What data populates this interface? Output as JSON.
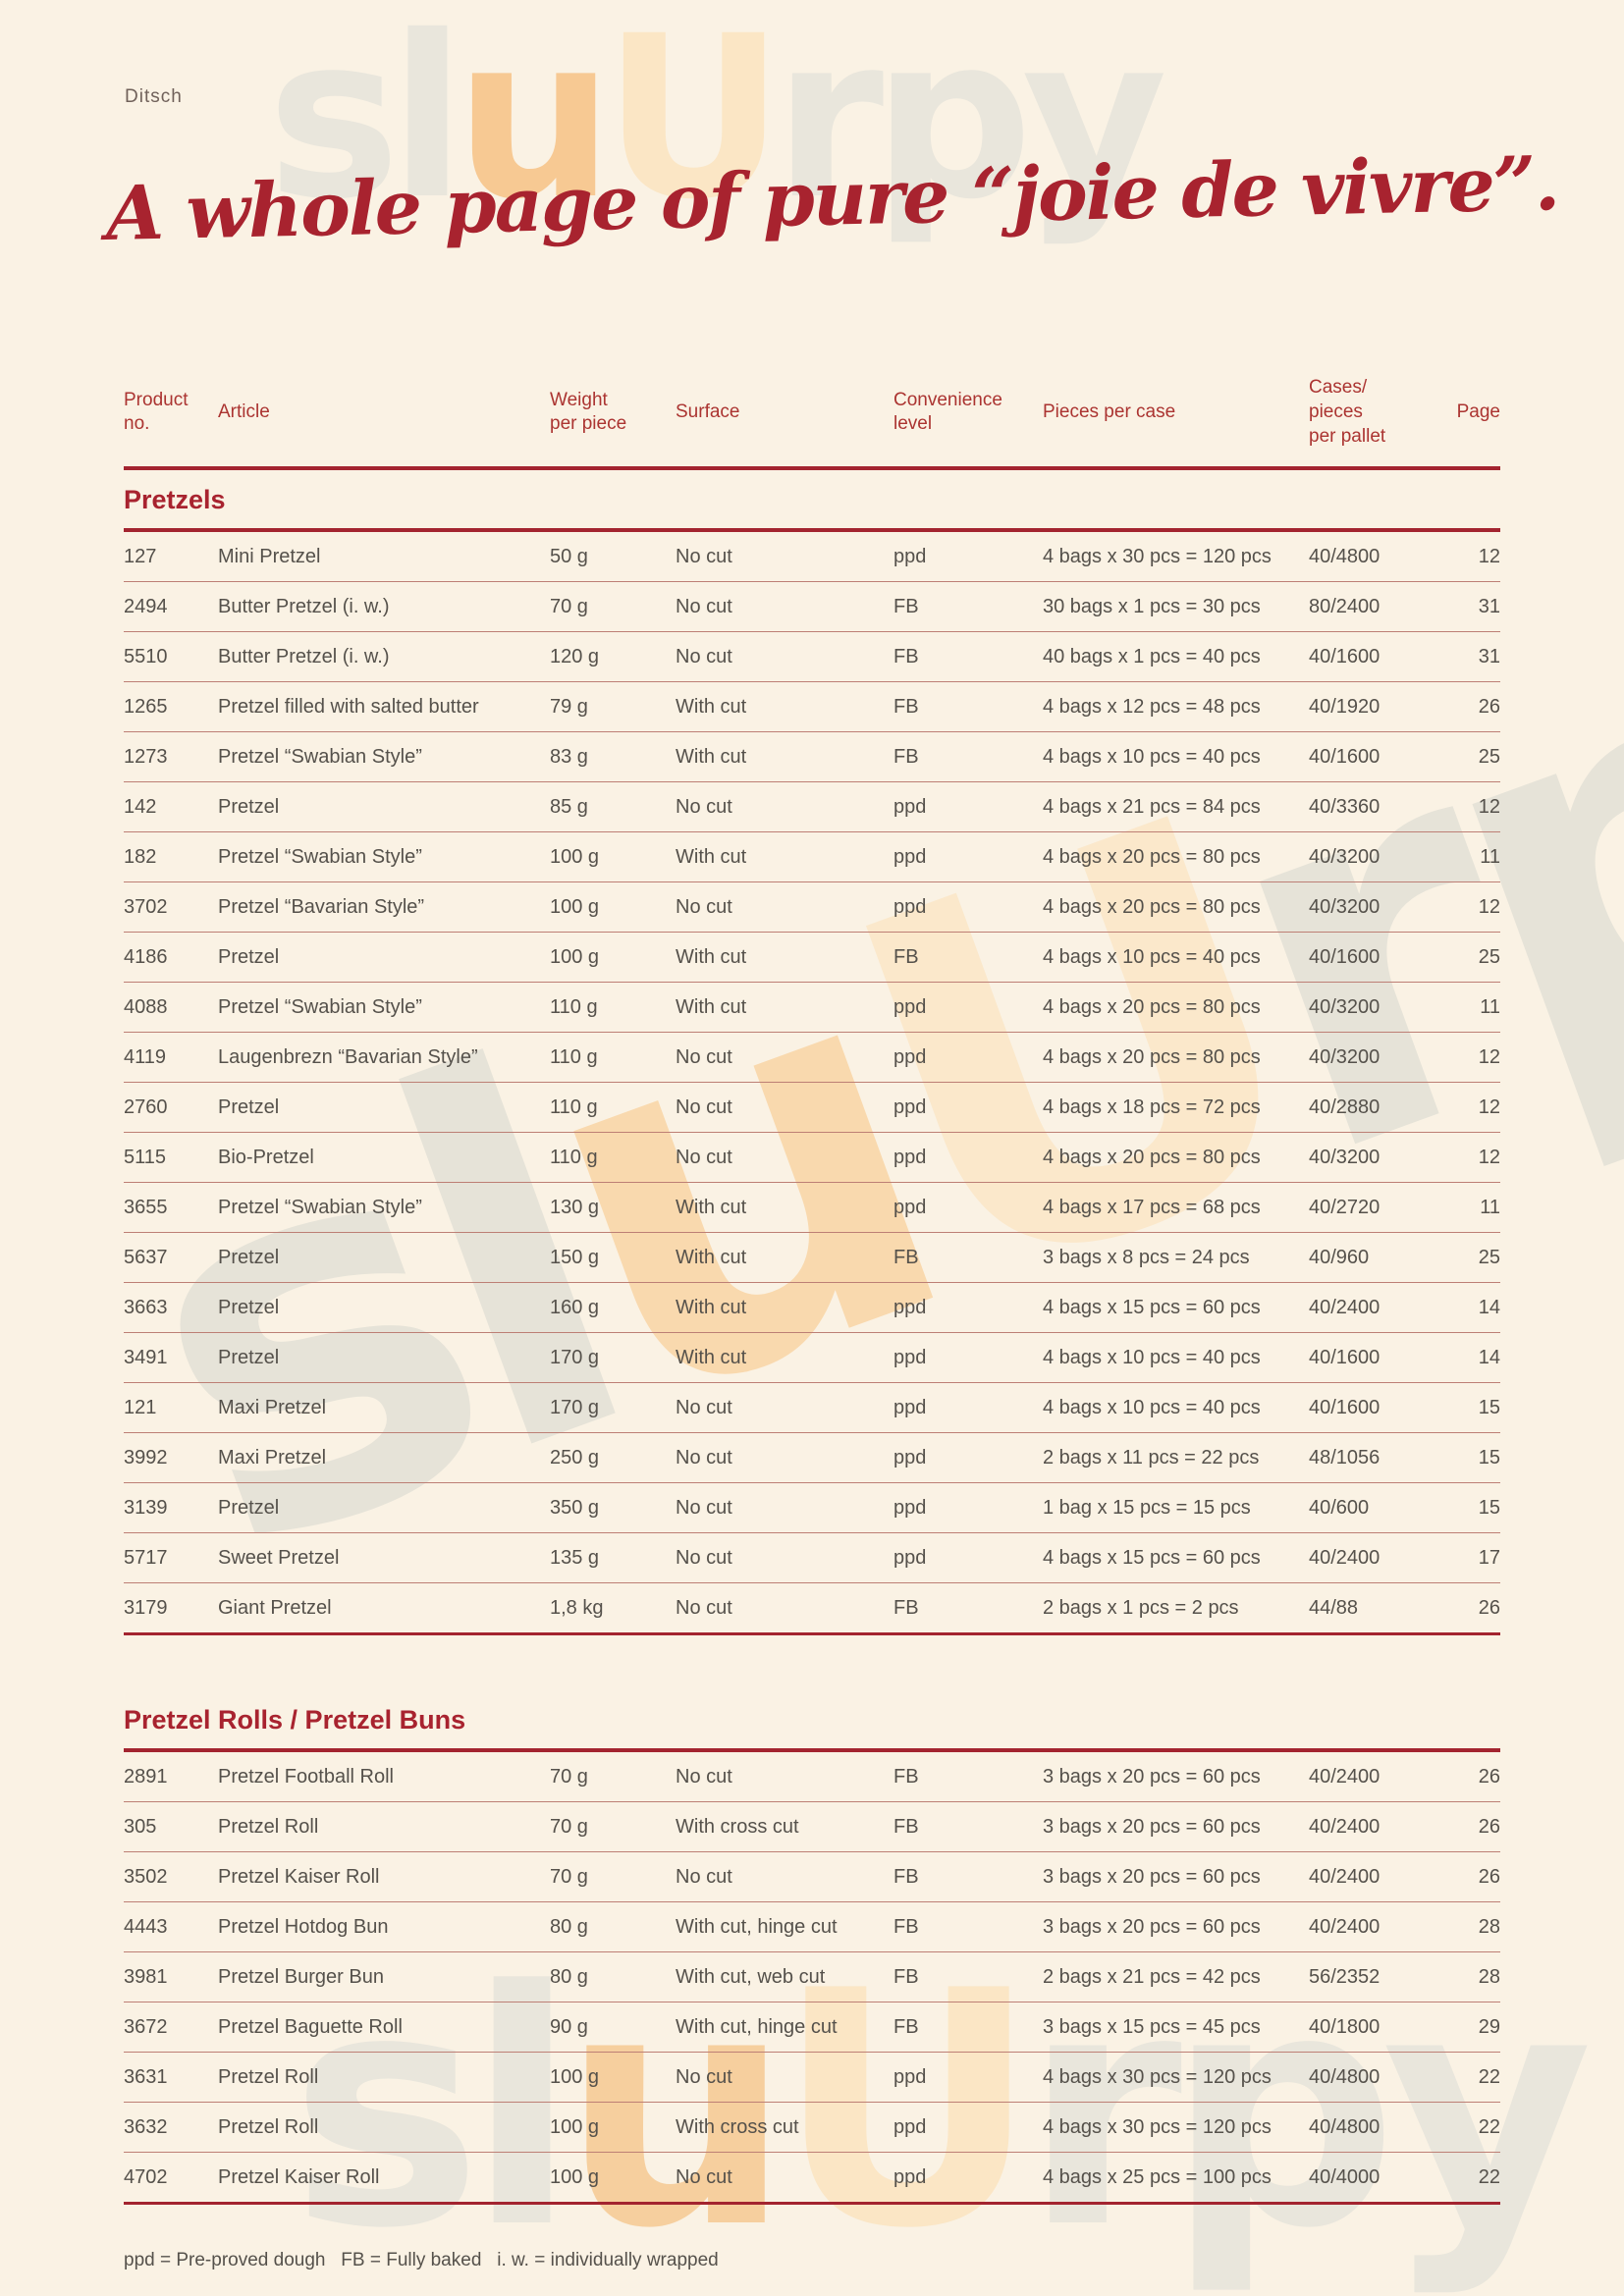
{
  "page": {
    "brand": "Ditsch",
    "title": "A whole page of pure “joie de vivre”.",
    "footer": "ppd = Pre-proved dough   FB = Fully baked   i. w. = individually wrapped"
  },
  "watermark": {
    "gray_left": "sl",
    "orange_small_u": "u",
    "orange_big_u": "U",
    "gray_right": "rpy"
  },
  "colors": {
    "background": "#faf2e4",
    "accent_red": "#a3242f",
    "header_red": "#ab3431",
    "body_text": "#55514b",
    "row_rule": "#bd7f75",
    "watermark_gray": "#e9e6dc",
    "watermark_orange": "#f7c993"
  },
  "table": {
    "columns": [
      "Product\nno.",
      "Article",
      "Weight\nper piece",
      "Surface",
      "Convenience\nlevel",
      "Pieces per case",
      "Cases/\npieces\nper pallet",
      "Page"
    ],
    "sections": [
      {
        "name": "Pretzels",
        "rows": [
          [
            "127",
            "Mini Pretzel",
            "50 g",
            "No cut",
            "ppd",
            "4 bags x 30 pcs = 120 pcs",
            "40/4800",
            "12"
          ],
          [
            "2494",
            "Butter Pretzel (i. w.)",
            "70 g",
            "No cut",
            "FB",
            "30 bags x 1 pcs = 30 pcs",
            "80/2400",
            "31"
          ],
          [
            "5510",
            "Butter Pretzel (i. w.)",
            "120 g",
            "No cut",
            "FB",
            "40 bags x 1 pcs = 40 pcs",
            "40/1600",
            "31"
          ],
          [
            "1265",
            "Pretzel filled with salted butter",
            "79 g",
            "With cut",
            "FB",
            "4 bags x 12 pcs = 48 pcs",
            "40/1920",
            "26"
          ],
          [
            "1273",
            "Pretzel “Swabian Style”",
            "83 g",
            "With cut",
            "FB",
            "4 bags x 10 pcs = 40 pcs",
            "40/1600",
            "25"
          ],
          [
            "142",
            "Pretzel",
            "85 g",
            "No cut",
            "ppd",
            "4 bags x 21 pcs = 84 pcs",
            "40/3360",
            "12"
          ],
          [
            "182",
            "Pretzel “Swabian Style”",
            "100 g",
            "With cut",
            "ppd",
            "4 bags x 20 pcs = 80 pcs",
            "40/3200",
            "11"
          ],
          [
            "3702",
            "Pretzel “Bavarian Style”",
            "100 g",
            "No cut",
            "ppd",
            "4 bags x 20 pcs = 80 pcs",
            "40/3200",
            "12"
          ],
          [
            "4186",
            "Pretzel",
            "100 g",
            "With cut",
            "FB",
            "4 bags x 10 pcs = 40 pcs",
            "40/1600",
            "25"
          ],
          [
            "4088",
            "Pretzel “Swabian Style”",
            "110 g",
            "With cut",
            "ppd",
            "4 bags x 20 pcs = 80 pcs",
            "40/3200",
            "11"
          ],
          [
            "4119",
            "Laugenbrezn “Bavarian Style”",
            "110 g",
            "No cut",
            "ppd",
            "4 bags x 20 pcs = 80 pcs",
            "40/3200",
            "12"
          ],
          [
            "2760",
            "Pretzel",
            "110 g",
            "No cut",
            "ppd",
            "4 bags x 18 pcs = 72 pcs",
            "40/2880",
            "12"
          ],
          [
            "5115",
            "Bio-Pretzel",
            "110 g",
            "No cut",
            "ppd",
            "4 bags x 20 pcs = 80 pcs",
            "40/3200",
            "12"
          ],
          [
            "3655",
            "Pretzel “Swabian Style”",
            "130 g",
            "With cut",
            "ppd",
            "4 bags x 17 pcs = 68 pcs",
            "40/2720",
            "11"
          ],
          [
            "5637",
            "Pretzel",
            "150 g",
            "With cut",
            "FB",
            "3 bags x 8 pcs = 24 pcs",
            "40/960",
            "25"
          ],
          [
            "3663",
            "Pretzel",
            "160 g",
            "With cut",
            "ppd",
            "4 bags x 15 pcs = 60 pcs",
            "40/2400",
            "14"
          ],
          [
            "3491",
            "Pretzel",
            "170 g",
            "With cut",
            "ppd",
            "4 bags x 10 pcs = 40 pcs",
            "40/1600",
            "14"
          ],
          [
            "121",
            "Maxi Pretzel",
            "170 g",
            "No cut",
            "ppd",
            "4 bags x 10 pcs = 40 pcs",
            "40/1600",
            "15"
          ],
          [
            "3992",
            "Maxi Pretzel",
            "250 g",
            "No cut",
            "ppd",
            "2 bags x 11 pcs = 22 pcs",
            "48/1056",
            "15"
          ],
          [
            "3139",
            "Pretzel",
            "350 g",
            "No cut",
            "ppd",
            "1 bag x 15 pcs = 15 pcs",
            "40/600",
            "15"
          ],
          [
            "5717",
            "Sweet Pretzel",
            "135 g",
            "No cut",
            "ppd",
            "4 bags x 15 pcs = 60 pcs",
            "40/2400",
            "17"
          ],
          [
            "3179",
            "Giant Pretzel",
            "1,8 kg",
            "No cut",
            "FB",
            "2 bags x 1 pcs = 2 pcs",
            "44/88",
            "26"
          ]
        ]
      },
      {
        "name": "Pretzel Rolls / Pretzel Buns",
        "rows": [
          [
            "2891",
            "Pretzel Football Roll",
            "70 g",
            "No cut",
            "FB",
            "3 bags x 20 pcs = 60 pcs",
            "40/2400",
            "26"
          ],
          [
            "305",
            "Pretzel Roll",
            "70 g",
            "With cross cut",
            "FB",
            "3 bags x 20 pcs = 60 pcs",
            "40/2400",
            "26"
          ],
          [
            "3502",
            "Pretzel Kaiser Roll",
            "70 g",
            "No cut",
            "FB",
            "3 bags x 20 pcs = 60 pcs",
            "40/2400",
            "26"
          ],
          [
            "4443",
            "Pretzel Hotdog Bun",
            "80 g",
            "With cut, hinge cut",
            "FB",
            "3 bags x 20 pcs = 60 pcs",
            "40/2400",
            "28"
          ],
          [
            "3981",
            "Pretzel Burger Bun",
            "80 g",
            "With cut, web cut",
            "FB",
            "2 bags x 21 pcs = 42 pcs",
            "56/2352",
            "28"
          ],
          [
            "3672",
            "Pretzel Baguette Roll",
            "90 g",
            "With cut, hinge cut",
            "FB",
            "3 bags x 15 pcs = 45 pcs",
            "40/1800",
            "29"
          ],
          [
            "3631",
            "Pretzel Roll",
            "100 g",
            "No cut",
            "ppd",
            "4 bags x 30 pcs = 120 pcs",
            "40/4800",
            "22"
          ],
          [
            "3632",
            "Pretzel Roll",
            "100 g",
            "With cross cut",
            "ppd",
            "4 bags x 30 pcs = 120 pcs",
            "40/4800",
            "22"
          ],
          [
            "4702",
            "Pretzel Kaiser Roll",
            "100 g",
            "No cut",
            "ppd",
            "4 bags x 25 pcs = 100 pcs",
            "40/4000",
            "22"
          ]
        ]
      }
    ]
  }
}
